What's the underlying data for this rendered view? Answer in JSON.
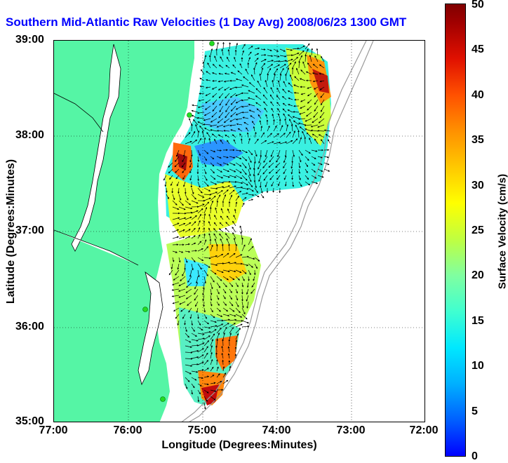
{
  "title": "Southern Mid-Atlantic Raw Velocities (1 Day Avg) 2008/06/23 1300 GMT",
  "x_axis": {
    "label": "Longitude (Degrees:Minutes)",
    "ticks": [
      "77:00",
      "76:00",
      "75:00",
      "74:00",
      "73:00",
      "72:00"
    ]
  },
  "y_axis": {
    "label": "Latitude (Degrees:Minutes)",
    "ticks": [
      "39:00",
      "38:00",
      "37:00",
      "36:00",
      "35:00"
    ]
  },
  "colorbar": {
    "label": "Surface Velocity (cm/s)",
    "ticks": [
      "50",
      "45",
      "40",
      "35",
      "30",
      "25",
      "20",
      "15",
      "10",
      "5",
      "0"
    ]
  },
  "colors": {
    "land": "#55f5a5",
    "title": "#0000ff"
  }
}
